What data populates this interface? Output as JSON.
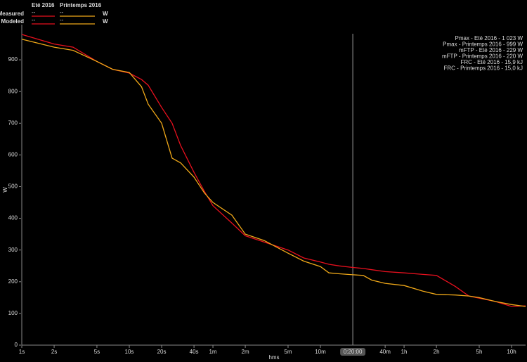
{
  "chart_data": {
    "type": "line",
    "x_label": "hms",
    "y_label": "W",
    "log_x": true,
    "legend_rows": [
      "Measured",
      "Modeled"
    ],
    "legend_value": "--",
    "legend_unit": "W",
    "annotations": [
      "Pmax - Eté 2016 - 1 023 W",
      "Pmax - Printemps 2016 - 999 W",
      "mFTP - Eté 2016 - 229 W",
      "mFTP - Printemps 2016 - 220 W",
      "FRC - Eté 2016 - 15,9 kJ",
      "FRC - Printemps 2016 - 15,0 kJ"
    ],
    "cursor": {
      "value": 1200,
      "label": "0:20:00"
    },
    "x": [
      1,
      2,
      3,
      5,
      7,
      10,
      13,
      15,
      20,
      25,
      30,
      40,
      50,
      60,
      90,
      120,
      180,
      300,
      420,
      600,
      720,
      900,
      1200,
      1500,
      1800,
      2400,
      3600,
      5400,
      7200,
      10800,
      14400,
      18000,
      25200,
      36000,
      48600
    ],
    "series": [
      {
        "name": "Eté 2016",
        "color": "#e8101e",
        "values": [
          980,
          950,
          940,
          895,
          870,
          858,
          838,
          820,
          750,
          700,
          630,
          545,
          485,
          440,
          385,
          345,
          325,
          300,
          275,
          262,
          255,
          250,
          245,
          242,
          238,
          232,
          228,
          223,
          220,
          185,
          155,
          148,
          138,
          122,
          124
        ]
      },
      {
        "name": "Printemps 2016",
        "color": "#f0a818",
        "values": [
          965,
          940,
          930,
          895,
          870,
          860,
          815,
          760,
          700,
          590,
          575,
          530,
          480,
          450,
          410,
          350,
          330,
          290,
          265,
          248,
          228,
          225,
          222,
          220,
          205,
          195,
          188,
          170,
          160,
          158,
          155,
          150,
          138,
          128,
          122
        ]
      }
    ],
    "xlim": [
      1,
      48600
    ],
    "xticks": [
      {
        "value": 1,
        "label": "1s"
      },
      {
        "value": 2,
        "label": "2s"
      },
      {
        "value": 5,
        "label": "5s"
      },
      {
        "value": 10,
        "label": "10s"
      },
      {
        "value": 20,
        "label": "20s"
      },
      {
        "value": 40,
        "label": "40s"
      },
      {
        "value": 60,
        "label": "1m"
      },
      {
        "value": 120,
        "label": "2m"
      },
      {
        "value": 300,
        "label": "5m"
      },
      {
        "value": 600,
        "label": "10m"
      },
      {
        "value": 2400,
        "label": "40m"
      },
      {
        "value": 3600,
        "label": "1h"
      },
      {
        "value": 7200,
        "label": "2h"
      },
      {
        "value": 18000,
        "label": "5h"
      },
      {
        "value": 36000,
        "label": "10h"
      }
    ],
    "ylim": [
      0,
      1000
    ],
    "yticks": [
      0,
      100,
      200,
      300,
      400,
      500,
      600,
      700,
      800,
      900
    ]
  }
}
